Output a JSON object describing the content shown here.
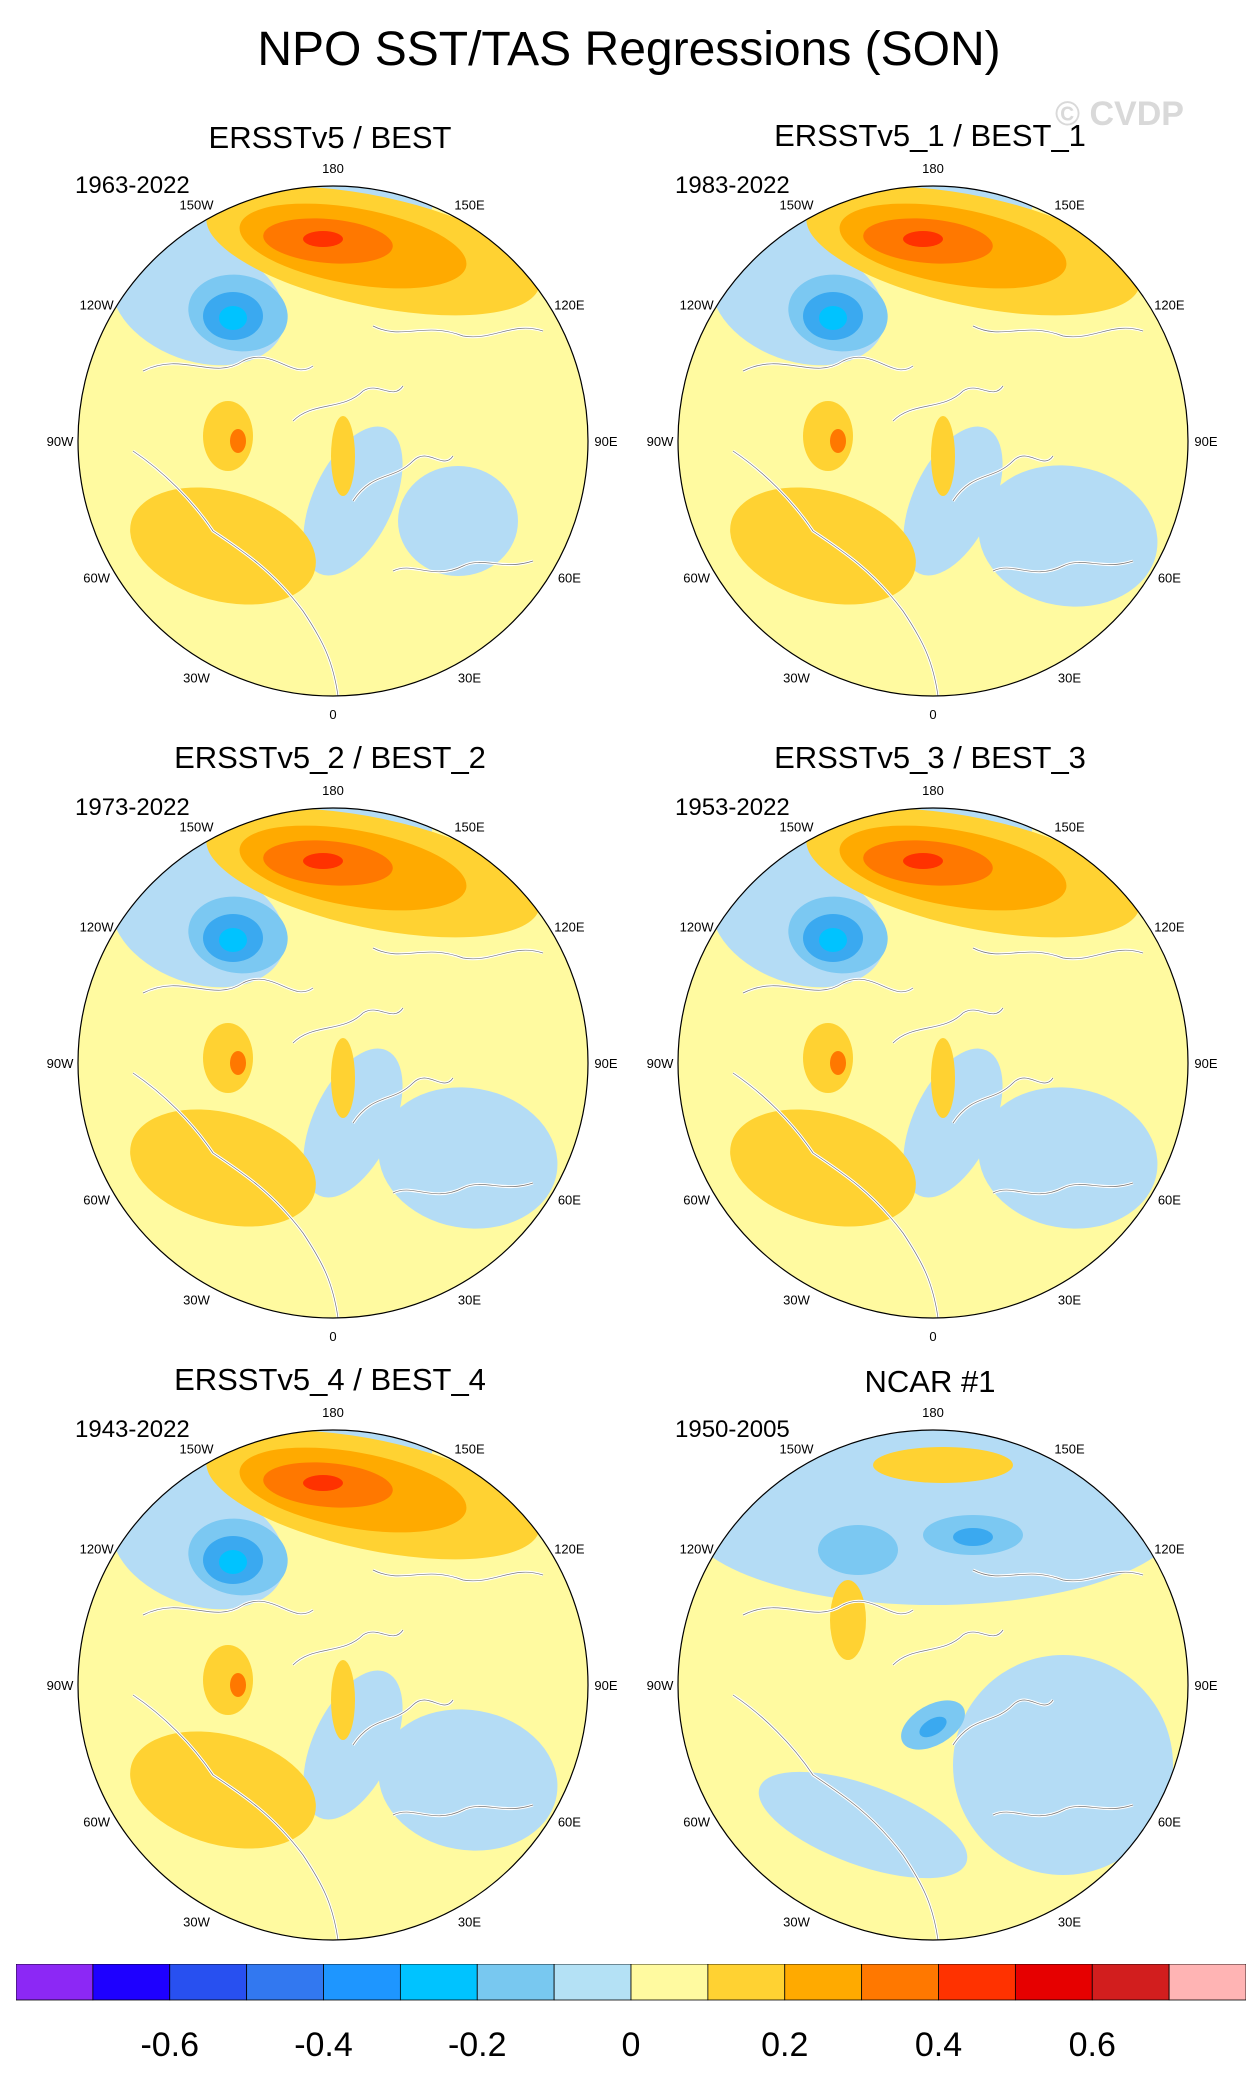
{
  "title": "NPO SST/TAS Regressions (SON)",
  "watermark": "© CVDP",
  "colors": {
    "ocean_land_yellow": "#fffaa0",
    "light_blue": "#b4dcf5",
    "mid_blue": "#7bc8f2",
    "blue": "#3aa9f0",
    "deep_blue": "#00c3ff",
    "orange_light": "#ffd232",
    "orange": "#ffaa00",
    "orange_dark": "#ff7800",
    "red": "#ff3200",
    "coast": "#ffffff",
    "lakes": "#555555"
  },
  "longitude_labels": [
    "180",
    "150E",
    "120E",
    "90E",
    "60E",
    "30E",
    "0",
    "30W",
    "60W",
    "90W",
    "120W",
    "150W"
  ],
  "panels": [
    {
      "title": "ERSSTv5 / BEST",
      "period": "1963-2022",
      "variant": "obs"
    },
    {
      "title": "ERSSTv5_1 / BEST_1",
      "period": "1983-2022",
      "variant": "obs1"
    },
    {
      "title": "ERSSTv5_2 / BEST_2",
      "period": "1973-2022",
      "variant": "obs2"
    },
    {
      "title": "ERSSTv5_3 / BEST_3",
      "period": "1953-2022",
      "variant": "obs3"
    },
    {
      "title": "ERSSTv5_4 / BEST_4",
      "period": "1943-2022",
      "variant": "obs4"
    },
    {
      "title": "NCAR #1",
      "period": "1950-2005",
      "variant": "model"
    }
  ],
  "colorbar": {
    "colors": [
      "#8c28f5",
      "#1e00ff",
      "#2850f0",
      "#3278f0",
      "#1e96ff",
      "#00c3ff",
      "#78c8f0",
      "#b4e1f5",
      "#fffaa0",
      "#ffd232",
      "#ffaa00",
      "#ff7800",
      "#ff3200",
      "#e60000",
      "#d21e1e",
      "#ffb4b4"
    ],
    "labels": [
      "-0.6",
      "-0.4",
      "-0.2",
      "0",
      "0.2",
      "0.4",
      "0.6"
    ]
  }
}
